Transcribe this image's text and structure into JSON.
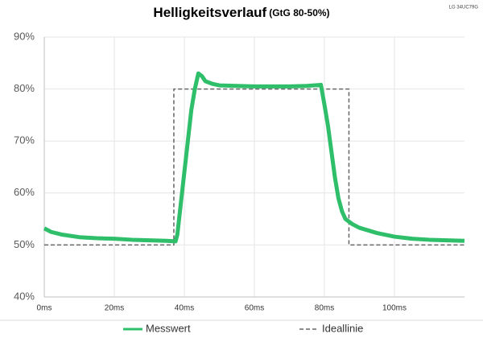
{
  "chart_data": {
    "type": "line",
    "title": "Helligkeitsverlauf",
    "subtitle": "(GtG 80-50%)",
    "annotation": "LG 34UC79G",
    "xlim": [
      0,
      120
    ],
    "xticks": [
      {
        "value": 0,
        "label": "0ms"
      },
      {
        "value": 20,
        "label": "20ms"
      },
      {
        "value": 40,
        "label": "40ms"
      },
      {
        "value": 60,
        "label": "60ms"
      },
      {
        "value": 80,
        "label": "80ms"
      },
      {
        "value": 100,
        "label": "100ms"
      }
    ],
    "ylim": [
      40,
      90
    ],
    "yticks": [
      {
        "value": 40,
        "label": "40%"
      },
      {
        "value": 50,
        "label": "50%"
      },
      {
        "value": 60,
        "label": "60%"
      },
      {
        "value": 70,
        "label": "70%"
      },
      {
        "value": 80,
        "label": "80%"
      },
      {
        "value": 90,
        "label": "90%"
      }
    ],
    "grid": true,
    "series": [
      {
        "name": "Messwert",
        "color": "#2fbf6a",
        "dashed": false,
        "x": [
          0,
          2,
          5,
          10,
          15,
          20,
          25,
          30,
          35,
          37.5,
          38,
          39,
          40,
          41,
          42,
          43,
          44,
          45,
          46,
          48,
          50,
          55,
          60,
          65,
          70,
          75,
          79,
          80,
          81,
          82,
          83,
          84,
          85,
          86,
          88,
          90,
          95,
          100,
          105,
          110,
          115,
          120
        ],
        "values": [
          53.2,
          52.5,
          52,
          51.5,
          51.3,
          51.2,
          51,
          50.9,
          50.8,
          50.7,
          52,
          58,
          64,
          70,
          76,
          80,
          83,
          82.5,
          81.5,
          81,
          80.7,
          80.6,
          80.5,
          80.5,
          80.5,
          80.6,
          80.8,
          77,
          73,
          68,
          63,
          59,
          56.5,
          55,
          54,
          53.3,
          52.3,
          51.6,
          51.2,
          51,
          50.9,
          50.8
        ]
      },
      {
        "name": "Ideallinie",
        "color": "#666666",
        "dashed": true,
        "x": [
          0,
          37,
          37,
          87,
          87,
          120
        ],
        "values": [
          50,
          50,
          80,
          80,
          50,
          50
        ]
      }
    ]
  }
}
